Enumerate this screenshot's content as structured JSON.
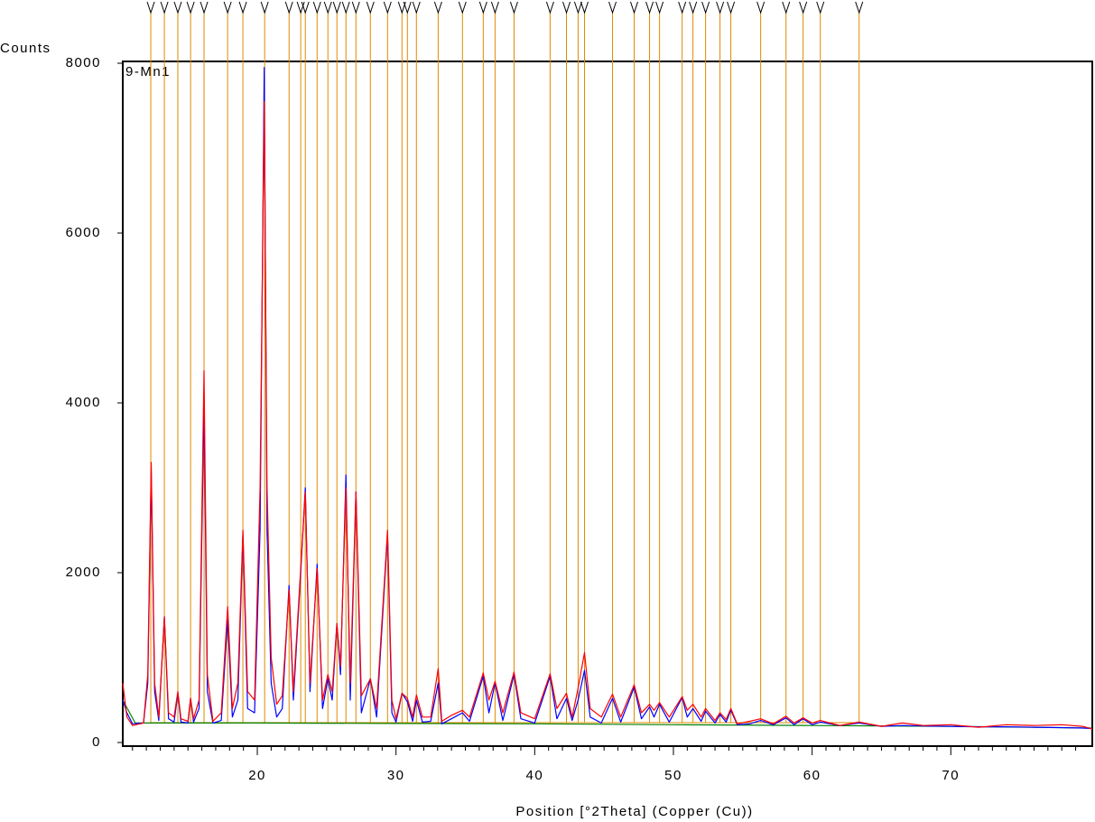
{
  "chart_data": {
    "type": "line",
    "title": "9-Mn1",
    "ylabel": "Counts",
    "xlabel": "Position [°2Theta] (Copper (Cu))",
    "xlim": [
      10.3,
      80.2
    ],
    "xticks": [
      20,
      30,
      40,
      50,
      60,
      70
    ],
    "xticks_minor": [
      11,
      12,
      13,
      14,
      15,
      16,
      17,
      18,
      19,
      21,
      22,
      23,
      24,
      25,
      26,
      27,
      28,
      29,
      31,
      32,
      33,
      34,
      35,
      36,
      37,
      38,
      39,
      41,
      42,
      43,
      44,
      45,
      46,
      47,
      48,
      49,
      51,
      52,
      53,
      54,
      55,
      56,
      57,
      58,
      59,
      61,
      62,
      63,
      64,
      65,
      66,
      67,
      68,
      69,
      71,
      72,
      73,
      74,
      75,
      76,
      77,
      78,
      79
    ],
    "ylim": [
      0,
      8000
    ],
    "yticks": [
      0,
      2000,
      4000,
      6000,
      8000
    ],
    "x": [
      10.3,
      10.6,
      11.0,
      11.8,
      12.1,
      12.35,
      12.6,
      12.9,
      13.3,
      13.6,
      14.0,
      14.27,
      14.5,
      15.0,
      15.19,
      15.4,
      15.8,
      16.16,
      16.4,
      16.8,
      17.4,
      17.86,
      18.2,
      18.6,
      18.96,
      19.3,
      19.8,
      20.2,
      20.5,
      20.7,
      21.0,
      21.4,
      21.8,
      22.29,
      22.6,
      23.13,
      23.46,
      23.8,
      24.31,
      24.7,
      25.09,
      25.4,
      25.74,
      26.0,
      26.39,
      26.7,
      27.11,
      27.5,
      28.15,
      28.6,
      29.39,
      29.7,
      30.0,
      30.43,
      30.82,
      31.2,
      31.47,
      31.9,
      32.5,
      33.04,
      33.3,
      34.0,
      34.79,
      35.3,
      36.29,
      36.7,
      37.14,
      37.7,
      38.51,
      39.0,
      40.0,
      41.11,
      41.6,
      42.29,
      42.7,
      43.13,
      43.59,
      44.0,
      44.8,
      45.61,
      46.2,
      47.17,
      47.7,
      48.28,
      48.6,
      49.0,
      49.7,
      50.63,
      51.0,
      51.41,
      52.0,
      52.32,
      53.0,
      53.36,
      53.8,
      54.14,
      54.6,
      55.5,
      56.29,
      57.2,
      58.12,
      58.7,
      59.35,
      60.0,
      60.59,
      62.0,
      63.39,
      65,
      66.5,
      68,
      70,
      72,
      74,
      76,
      78,
      79.5,
      80.2
    ],
    "series": [
      {
        "color": "#ff0000",
        "values": [
          700,
          300,
          200,
          230,
          800,
          3300,
          700,
          300,
          1480,
          350,
          300,
          600,
          280,
          250,
          520,
          280,
          500,
          4380,
          800,
          250,
          350,
          1600,
          400,
          700,
          2500,
          600,
          500,
          3000,
          7550,
          3000,
          1000,
          450,
          550,
          1800,
          600,
          2050,
          2950,
          700,
          2050,
          500,
          800,
          600,
          1400,
          900,
          3000,
          700,
          2950,
          550,
          750,
          400,
          2500,
          500,
          280,
          580,
          520,
          300,
          560,
          300,
          300,
          870,
          250,
          320,
          380,
          300,
          820,
          500,
          720,
          350,
          830,
          350,
          280,
          810,
          400,
          580,
          300,
          640,
          1060,
          400,
          300,
          570,
          300,
          680,
          350,
          450,
          380,
          470,
          300,
          540,
          380,
          450,
          300,
          400,
          260,
          350,
          270,
          400,
          220,
          250,
          280,
          220,
          310,
          230,
          290,
          230,
          260,
          200,
          240,
          190,
          230,
          200,
          210,
          180,
          210,
          200,
          210,
          190,
          160
        ]
      },
      {
        "color": "#0000ff",
        "values": [
          500,
          350,
          220,
          230,
          700,
          3200,
          600,
          260,
          1480,
          280,
          240,
          580,
          240,
          230,
          520,
          240,
          400,
          4000,
          600,
          230,
          260,
          1450,
          300,
          500,
          2450,
          400,
          350,
          2500,
          7950,
          2500,
          700,
          300,
          400,
          1850,
          500,
          2000,
          3000,
          600,
          2100,
          400,
          750,
          500,
          1400,
          800,
          3150,
          500,
          2950,
          350,
          750,
          300,
          2450,
          350,
          240,
          580,
          480,
          250,
          500,
          240,
          250,
          700,
          220,
          280,
          350,
          250,
          780,
          350,
          700,
          260,
          800,
          280,
          230,
          780,
          280,
          520,
          260,
          500,
          850,
          300,
          230,
          520,
          240,
          650,
          280,
          420,
          300,
          450,
          240,
          530,
          300,
          400,
          250,
          370,
          230,
          330,
          240,
          380,
          210,
          220,
          260,
          210,
          290,
          210,
          280,
          210,
          240,
          200,
          230,
          190,
          200,
          195,
          190,
          185,
          185,
          180,
          175,
          170,
          165
        ]
      },
      {
        "color": "#008000",
        "x": [
          10.3,
          11.2,
          20,
          30,
          40,
          50,
          60,
          70,
          80.2
        ],
        "values": [
          500,
          230,
          230,
          225,
          220,
          210,
          200,
          190,
          170
        ]
      }
    ],
    "reflections_color": "#e08a00",
    "reflections": [
      12.32,
      13.3,
      14.27,
      15.19,
      16.16,
      17.86,
      18.96,
      20.53,
      22.29,
      23.13,
      23.46,
      24.31,
      25.09,
      25.74,
      26.39,
      27.11,
      28.15,
      29.39,
      30.43,
      30.82,
      31.47,
      33.04,
      34.79,
      36.29,
      37.14,
      38.51,
      41.11,
      42.29,
      43.13,
      43.59,
      45.61,
      47.17,
      48.28,
      49.0,
      50.63,
      51.41,
      52.32,
      53.36,
      54.14,
      56.29,
      58.12,
      59.35,
      60.59,
      63.39
    ]
  }
}
